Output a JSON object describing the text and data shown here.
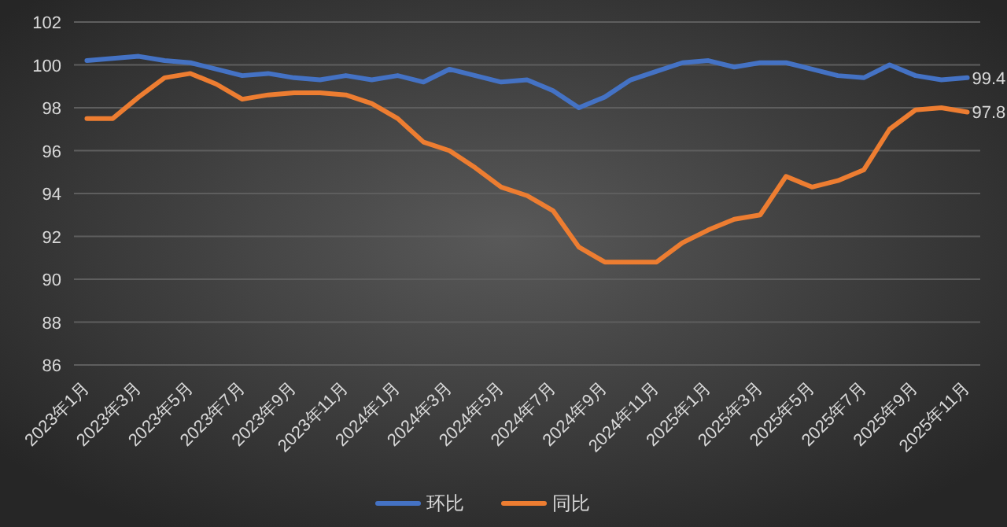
{
  "chart_data": {
    "type": "line",
    "categories": [
      "2023年1月",
      null,
      "2023年3月",
      null,
      "2023年5月",
      null,
      "2023年7月",
      null,
      "2023年9月",
      null,
      "2023年11月",
      null,
      "2024年1月",
      null,
      "2024年3月",
      null,
      "2024年5月",
      null,
      "2024年7月",
      null,
      "2024年9月",
      null,
      "2024年11月",
      null,
      "2025年1月",
      null,
      "2025年3月",
      null,
      "2025年5月",
      null,
      "2025年7月",
      null,
      "2025年9月",
      null,
      "2025年11月"
    ],
    "series": [
      {
        "name": "环比",
        "color": "#4472c4",
        "values": [
          100.2,
          100.3,
          100.4,
          100.2,
          100.1,
          99.8,
          99.5,
          99.6,
          99.4,
          99.3,
          99.5,
          99.3,
          99.5,
          99.2,
          99.8,
          99.5,
          99.2,
          99.3,
          98.8,
          98.0,
          98.5,
          99.3,
          99.7,
          100.1,
          100.2,
          99.9,
          100.1,
          100.1,
          99.8,
          99.5,
          99.4,
          100.0,
          99.5,
          99.3,
          99.4
        ],
        "value_labels": [
          null,
          null,
          null,
          null,
          null,
          null,
          null,
          null,
          null,
          null,
          null,
          null,
          null,
          null,
          null,
          null,
          null,
          null,
          null,
          null,
          null,
          null,
          null,
          null,
          null,
          null,
          null,
          null,
          null,
          null,
          null,
          null,
          null,
          null,
          "99.4"
        ]
      },
      {
        "name": "同比",
        "color": "#ed7d31",
        "values": [
          97.5,
          97.5,
          98.5,
          99.4,
          99.6,
          99.1,
          98.4,
          98.6,
          98.7,
          98.7,
          98.6,
          98.2,
          97.5,
          96.4,
          96.0,
          95.2,
          94.3,
          93.9,
          93.2,
          91.5,
          90.8,
          90.8,
          90.8,
          91.7,
          92.3,
          92.8,
          93.0,
          94.8,
          94.3,
          94.6,
          95.1,
          97.0,
          97.9,
          98.0,
          97.8
        ],
        "value_labels": [
          null,
          null,
          null,
          null,
          null,
          null,
          null,
          null,
          null,
          null,
          null,
          null,
          null,
          null,
          null,
          null,
          null,
          null,
          null,
          null,
          null,
          null,
          null,
          null,
          null,
          null,
          null,
          null,
          null,
          null,
          null,
          null,
          null,
          null,
          "97.8"
        ]
      }
    ],
    "ylim": [
      86,
      102
    ],
    "yticks": [
      86,
      88,
      90,
      92,
      94,
      96,
      98,
      100,
      102
    ],
    "grid": "y",
    "legend": "bottom",
    "marker": "none",
    "line_style": "solid"
  }
}
